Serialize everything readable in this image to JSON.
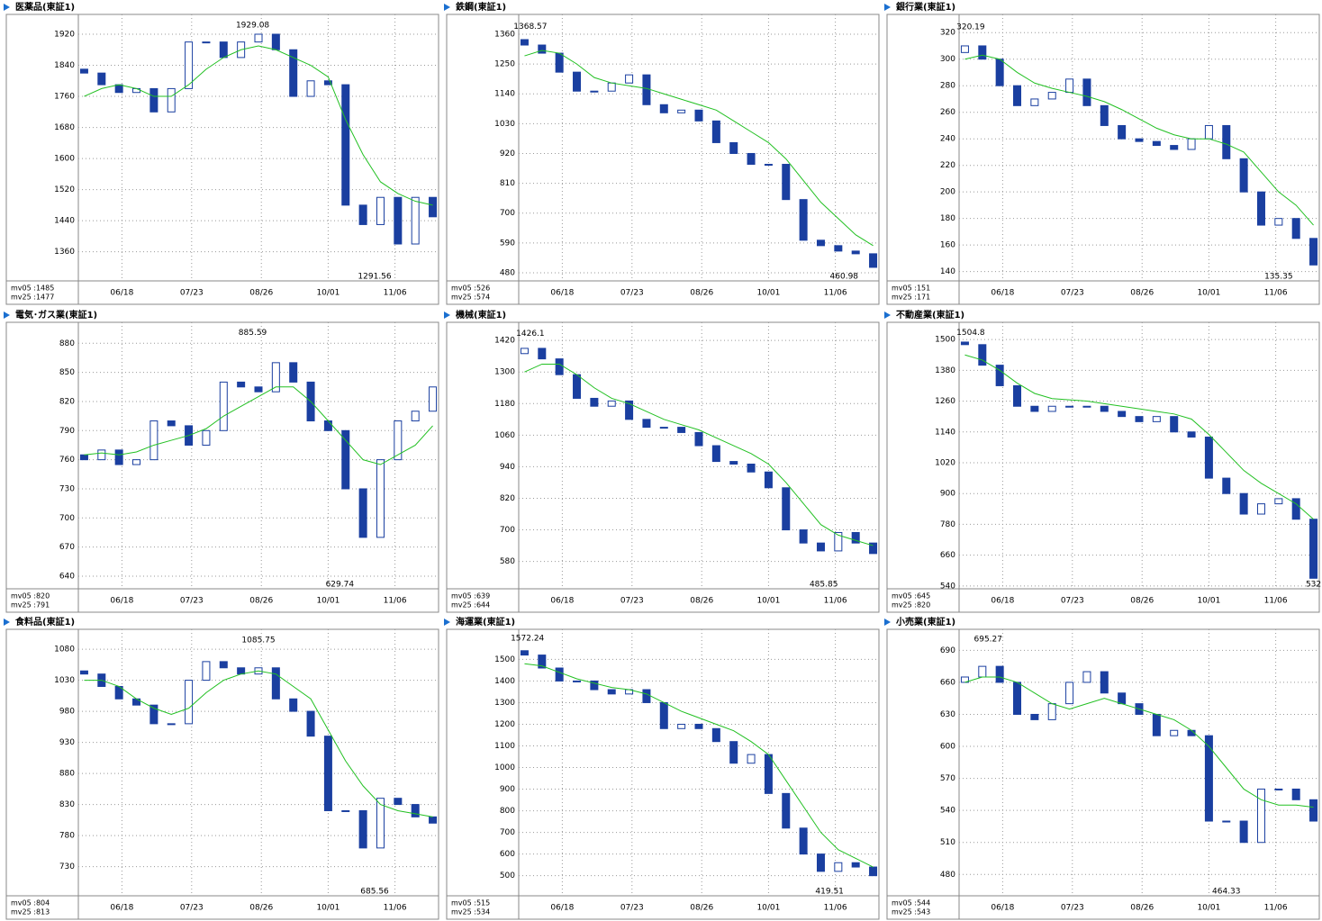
{
  "chart_data": [
    {
      "type": "candlestick",
      "title": "医薬品(東証1)",
      "x": [
        0,
        6,
        12,
        18,
        24,
        30,
        36,
        42,
        48,
        54,
        60,
        66,
        72,
        78,
        84,
        90,
        96,
        102,
        108,
        114,
        120
      ],
      "open": [
        1830,
        1820,
        1790,
        1770,
        1780,
        1720,
        1780,
        1900,
        1900,
        1860,
        1900,
        1920,
        1880,
        1760,
        1800,
        1790,
        1480,
        1430,
        1500,
        1380,
        1500
      ],
      "close": [
        1820,
        1790,
        1770,
        1780,
        1720,
        1780,
        1900,
        1900,
        1860,
        1900,
        1920,
        1880,
        1760,
        1800,
        1790,
        1480,
        1430,
        1500,
        1380,
        1500,
        1450
      ],
      "ma25": [
        1760,
        1780,
        1790,
        1780,
        1760,
        1760,
        1790,
        1830,
        1860,
        1880,
        1890,
        1880,
        1860,
        1840,
        1810,
        1700,
        1610,
        1540,
        1510,
        1490,
        1480
      ],
      "candle_color": "#1a3fa0",
      "ma25_color": "#22c022",
      "grid": true,
      "xlim": [
        -2,
        122
      ],
      "xticks": [
        {
          "value": 13,
          "label": "06/18"
        },
        {
          "value": 37,
          "label": "07/23"
        },
        {
          "value": 61,
          "label": "08/26"
        },
        {
          "value": 84,
          "label": "10/01"
        },
        {
          "value": 107,
          "label": "11/06"
        }
      ],
      "ylim": [
        1285,
        1971
      ],
      "yticks": [
        1920,
        1840,
        1760,
        1680,
        1600,
        1520,
        1440,
        1360
      ],
      "peak": {
        "x": 58,
        "value": 1929.08
      },
      "trough": {
        "x": 100,
        "value": 1291.56
      },
      "mv_texts": [
        "mv05 :1485",
        "mv25 :1477"
      ]
    },
    {
      "type": "candlestick",
      "title": "鉄鋼(東証1)",
      "x": [
        0,
        6,
        12,
        18,
        24,
        30,
        36,
        42,
        48,
        54,
        60,
        66,
        72,
        78,
        84,
        90,
        96,
        102,
        108,
        114,
        120
      ],
      "open": [
        1340,
        1320,
        1290,
        1220,
        1150,
        1150,
        1180,
        1210,
        1100,
        1070,
        1080,
        1040,
        960,
        920,
        880,
        880,
        750,
        600,
        580,
        560,
        550
      ],
      "close": [
        1320,
        1290,
        1220,
        1150,
        1150,
        1180,
        1210,
        1100,
        1070,
        1080,
        1040,
        960,
        920,
        880,
        880,
        750,
        600,
        580,
        560,
        550,
        500
      ],
      "ma25": [
        1280,
        1300,
        1290,
        1250,
        1200,
        1180,
        1170,
        1160,
        1140,
        1120,
        1100,
        1080,
        1040,
        1000,
        960,
        900,
        820,
        740,
        680,
        620,
        580
      ],
      "candle_color": "#1a3fa0",
      "ma25_color": "#22c022",
      "grid": true,
      "xlim": [
        -2,
        122
      ],
      "xticks": [
        {
          "value": 13,
          "label": "06/18"
        },
        {
          "value": 37,
          "label": "07/23"
        },
        {
          "value": 61,
          "label": "08/26"
        },
        {
          "value": 84,
          "label": "10/01"
        },
        {
          "value": 107,
          "label": "11/06"
        }
      ],
      "ylim": [
        450,
        1433
      ],
      "yticks": [
        1360,
        1250,
        1140,
        1030,
        920,
        810,
        700,
        590,
        480
      ],
      "peak": {
        "x": 2,
        "value": 1368.57
      },
      "trough": {
        "x": 110,
        "value": 460.98
      },
      "mv_texts": [
        "mv05 :526",
        "mv25 :574"
      ]
    },
    {
      "type": "candlestick",
      "title": "銀行業(東証1)",
      "x": [
        0,
        6,
        12,
        18,
        24,
        30,
        36,
        42,
        48,
        54,
        60,
        66,
        72,
        78,
        84,
        90,
        96,
        102,
        108,
        114,
        120
      ],
      "open": [
        305,
        310,
        300,
        280,
        265,
        270,
        275,
        285,
        265,
        250,
        240,
        238,
        235,
        232,
        240,
        250,
        225,
        200,
        175,
        180,
        165
      ],
      "close": [
        310,
        300,
        280,
        265,
        270,
        275,
        285,
        265,
        250,
        240,
        238,
        235,
        232,
        240,
        250,
        225,
        200,
        175,
        180,
        165,
        145
      ],
      "ma25": [
        300,
        303,
        300,
        290,
        282,
        278,
        275,
        272,
        268,
        262,
        255,
        248,
        243,
        240,
        240,
        236,
        230,
        215,
        200,
        190,
        175
      ],
      "candle_color": "#1a3fa0",
      "ma25_color": "#22c022",
      "grid": true,
      "xlim": [
        -2,
        122
      ],
      "xticks": [
        {
          "value": 13,
          "label": "06/18"
        },
        {
          "value": 37,
          "label": "07/23"
        },
        {
          "value": 61,
          "label": "08/26"
        },
        {
          "value": 84,
          "label": "10/01"
        },
        {
          "value": 107,
          "label": "11/06"
        }
      ],
      "ylim": [
        133,
        333.7
      ],
      "yticks": [
        320,
        300,
        280,
        260,
        240,
        220,
        200,
        180,
        160,
        140
      ],
      "peak": {
        "x": 2,
        "value": 320.19
      },
      "trough": {
        "x": 108,
        "value": 135.35
      },
      "mv_texts": [
        "mv05 :151",
        "mv25 :171"
      ]
    },
    {
      "type": "candlestick",
      "title": "電気･ガス業(東証1)",
      "x": [
        0,
        6,
        12,
        18,
        24,
        30,
        36,
        42,
        48,
        54,
        60,
        66,
        72,
        78,
        84,
        90,
        96,
        102,
        108,
        114,
        120
      ],
      "open": [
        765,
        760,
        770,
        755,
        760,
        800,
        795,
        775,
        790,
        840,
        835,
        830,
        860,
        840,
        800,
        790,
        730,
        680,
        760,
        800,
        810
      ],
      "close": [
        760,
        770,
        755,
        760,
        800,
        795,
        775,
        790,
        840,
        835,
        830,
        860,
        840,
        800,
        790,
        730,
        680,
        760,
        800,
        810,
        835
      ],
      "ma25": [
        765,
        767,
        765,
        768,
        775,
        780,
        785,
        792,
        805,
        815,
        825,
        835,
        835,
        820,
        800,
        780,
        760,
        755,
        765,
        775,
        795
      ],
      "candle_color": "#1a3fa0",
      "ma25_color": "#22c022",
      "grid": true,
      "xlim": [
        -2,
        122
      ],
      "xticks": [
        {
          "value": 13,
          "label": "06/18"
        },
        {
          "value": 37,
          "label": "07/23"
        },
        {
          "value": 61,
          "label": "08/26"
        },
        {
          "value": 84,
          "label": "10/01"
        },
        {
          "value": 107,
          "label": "11/06"
        }
      ],
      "ylim": [
        627,
        901.6
      ],
      "yticks": [
        880,
        850,
        820,
        790,
        760,
        730,
        700,
        670,
        640
      ],
      "peak": {
        "x": 58,
        "value": 885.59
      },
      "trough": {
        "x": 88,
        "value": 629.74
      },
      "mv_texts": [
        "mv05 :820",
        "mv25 :791"
      ]
    },
    {
      "type": "candlestick",
      "title": "機械(東証1)",
      "x": [
        0,
        6,
        12,
        18,
        24,
        30,
        36,
        42,
        48,
        54,
        60,
        66,
        72,
        78,
        84,
        90,
        96,
        102,
        108,
        114,
        120
      ],
      "open": [
        1370,
        1390,
        1350,
        1290,
        1200,
        1170,
        1190,
        1120,
        1090,
        1090,
        1070,
        1020,
        960,
        950,
        920,
        860,
        700,
        650,
        620,
        690,
        650
      ],
      "close": [
        1390,
        1350,
        1290,
        1200,
        1170,
        1190,
        1120,
        1090,
        1090,
        1070,
        1020,
        960,
        950,
        920,
        860,
        700,
        650,
        620,
        690,
        650,
        610
      ],
      "ma25": [
        1300,
        1330,
        1330,
        1290,
        1240,
        1200,
        1180,
        1150,
        1120,
        1100,
        1080,
        1050,
        1020,
        990,
        950,
        880,
        800,
        720,
        680,
        660,
        640
      ],
      "candle_color": "#1a3fa0",
      "ma25_color": "#22c022",
      "grid": true,
      "xlim": [
        -2,
        122
      ],
      "xticks": [
        {
          "value": 13,
          "label": "06/18"
        },
        {
          "value": 37,
          "label": "07/23"
        },
        {
          "value": 61,
          "label": "08/26"
        },
        {
          "value": 84,
          "label": "10/01"
        },
        {
          "value": 107,
          "label": "11/06"
        }
      ],
      "ylim": [
        476,
        1489
      ],
      "yticks": [
        1420,
        1300,
        1180,
        1060,
        940,
        820,
        700,
        580
      ],
      "peak": {
        "x": 2,
        "value": 1426.1
      },
      "trough": {
        "x": 103,
        "value": 485.85
      },
      "mv_texts": [
        "mv05 :639",
        "mv25 :644"
      ]
    },
    {
      "type": "candlestick",
      "title": "不動産業(東証1)",
      "x": [
        0,
        6,
        12,
        18,
        24,
        30,
        36,
        42,
        48,
        54,
        60,
        66,
        72,
        78,
        84,
        90,
        96,
        102,
        108,
        114,
        120
      ],
      "open": [
        1490,
        1480,
        1400,
        1320,
        1240,
        1220,
        1240,
        1240,
        1240,
        1220,
        1200,
        1180,
        1200,
        1140,
        1120,
        960,
        900,
        820,
        860,
        880,
        800
      ],
      "close": [
        1480,
        1400,
        1320,
        1240,
        1220,
        1240,
        1240,
        1240,
        1220,
        1200,
        1180,
        1200,
        1140,
        1120,
        960,
        900,
        820,
        860,
        880,
        800,
        570
      ],
      "ma25": [
        1440,
        1420,
        1380,
        1330,
        1290,
        1270,
        1265,
        1260,
        1250,
        1240,
        1230,
        1220,
        1210,
        1190,
        1130,
        1060,
        990,
        940,
        900,
        860,
        800
      ],
      "candle_color": "#1a3fa0",
      "ma25_color": "#22c022",
      "grid": true,
      "xlim": [
        -2,
        122
      ],
      "xticks": [
        {
          "value": 13,
          "label": "06/18"
        },
        {
          "value": 37,
          "label": "07/23"
        },
        {
          "value": 61,
          "label": "08/26"
        },
        {
          "value": 84,
          "label": "10/01"
        },
        {
          "value": 107,
          "label": "11/06"
        }
      ],
      "ylim": [
        529,
        1567
      ],
      "yticks": [
        1500,
        1380,
        1260,
        1140,
        1020,
        900,
        780,
        660,
        540
      ],
      "peak": {
        "x": 2,
        "value": 1504.8
      },
      "trough": {
        "x": 120,
        "value": 532
      },
      "mv_texts": [
        "mv05 :645",
        "mv25 :820"
      ]
    },
    {
      "type": "candlestick",
      "title": "食料品(東証1)",
      "x": [
        0,
        6,
        12,
        18,
        24,
        30,
        36,
        42,
        48,
        54,
        60,
        66,
        72,
        78,
        84,
        90,
        96,
        102,
        108,
        114,
        120
      ],
      "open": [
        1045,
        1040,
        1020,
        1000,
        990,
        960,
        960,
        1030,
        1060,
        1050,
        1040,
        1050,
        1000,
        980,
        940,
        820,
        820,
        760,
        840,
        830,
        810
      ],
      "close": [
        1040,
        1020,
        1000,
        990,
        960,
        960,
        1030,
        1060,
        1050,
        1040,
        1050,
        1000,
        980,
        940,
        820,
        820,
        760,
        840,
        830,
        810,
        800
      ],
      "ma25": [
        1030,
        1030,
        1020,
        1000,
        985,
        975,
        985,
        1010,
        1030,
        1040,
        1045,
        1040,
        1020,
        1000,
        950,
        900,
        860,
        830,
        820,
        815,
        810
      ],
      "candle_color": "#1a3fa0",
      "ma25_color": "#22c022",
      "grid": true,
      "xlim": [
        -2,
        122
      ],
      "xticks": [
        {
          "value": 13,
          "label": "06/18"
        },
        {
          "value": 37,
          "label": "07/23"
        },
        {
          "value": 61,
          "label": "08/26"
        },
        {
          "value": 84,
          "label": "10/01"
        },
        {
          "value": 107,
          "label": "11/06"
        }
      ],
      "ylim": [
        683,
        1112
      ],
      "yticks": [
        1080,
        1030,
        980,
        930,
        880,
        830,
        780,
        730
      ],
      "peak": {
        "x": 60,
        "value": 1085.75
      },
      "trough": {
        "x": 100,
        "value": 685.56
      },
      "mv_texts": [
        "mv05 :804",
        "mv25 :813"
      ]
    },
    {
      "type": "candlestick",
      "title": "海運業(東証1)",
      "x": [
        0,
        6,
        12,
        18,
        24,
        30,
        36,
        42,
        48,
        54,
        60,
        66,
        72,
        78,
        84,
        90,
        96,
        102,
        108,
        114,
        120
      ],
      "open": [
        1540,
        1520,
        1460,
        1400,
        1400,
        1360,
        1340,
        1360,
        1300,
        1180,
        1200,
        1180,
        1120,
        1020,
        1060,
        880,
        720,
        600,
        520,
        560,
        540
      ],
      "close": [
        1520,
        1460,
        1400,
        1400,
        1360,
        1340,
        1360,
        1300,
        1180,
        1200,
        1180,
        1120,
        1020,
        1060,
        880,
        720,
        600,
        520,
        560,
        540,
        500
      ],
      "ma25": [
        1480,
        1470,
        1440,
        1410,
        1390,
        1370,
        1360,
        1340,
        1300,
        1260,
        1230,
        1200,
        1170,
        1120,
        1060,
        940,
        820,
        700,
        620,
        580,
        540
      ],
      "candle_color": "#1a3fa0",
      "ma25_color": "#22c022",
      "grid": true,
      "xlim": [
        -2,
        122
      ],
      "xticks": [
        {
          "value": 13,
          "label": "06/18"
        },
        {
          "value": 37,
          "label": "07/23"
        },
        {
          "value": 61,
          "label": "08/26"
        },
        {
          "value": 84,
          "label": "10/01"
        },
        {
          "value": 107,
          "label": "11/06"
        }
      ],
      "ylim": [
        407,
        1639
      ],
      "yticks": [
        1500,
        1400,
        1300,
        1200,
        1100,
        1000,
        900,
        800,
        700,
        600,
        500
      ],
      "peak": {
        "x": 1,
        "value": 1572.24
      },
      "trough": {
        "x": 105,
        "value": 419.51
      },
      "mv_texts": [
        "mv05 :515",
        "mv25 :534"
      ]
    },
    {
      "type": "candlestick",
      "title": "小売業(東証1)",
      "x": [
        0,
        6,
        12,
        18,
        24,
        30,
        36,
        42,
        48,
        54,
        60,
        66,
        72,
        78,
        84,
        90,
        96,
        102,
        108,
        114,
        120
      ],
      "open": [
        660,
        665,
        675,
        660,
        630,
        625,
        640,
        660,
        670,
        650,
        640,
        630,
        610,
        615,
        610,
        530,
        530,
        510,
        560,
        560,
        550
      ],
      "close": [
        665,
        675,
        660,
        630,
        625,
        640,
        660,
        670,
        650,
        640,
        630,
        610,
        615,
        610,
        530,
        530,
        510,
        560,
        560,
        550,
        530
      ],
      "ma25": [
        660,
        665,
        665,
        660,
        650,
        640,
        635,
        640,
        645,
        640,
        635,
        630,
        625,
        615,
        600,
        580,
        560,
        550,
        545,
        545,
        543
      ],
      "candle_color": "#1a3fa0",
      "ma25_color": "#22c022",
      "grid": true,
      "xlim": [
        -2,
        122
      ],
      "xticks": [
        {
          "value": 13,
          "label": "06/18"
        },
        {
          "value": 37,
          "label": "07/23"
        },
        {
          "value": 61,
          "label": "08/26"
        },
        {
          "value": 84,
          "label": "10/01"
        },
        {
          "value": 107,
          "label": "11/06"
        }
      ],
      "ylim": [
        460,
        709.7
      ],
      "yticks": [
        690,
        660,
        630,
        600,
        570,
        540,
        510,
        480
      ],
      "peak": {
        "x": 8,
        "value": 695.27
      },
      "trough": {
        "x": 90,
        "value": 464.33
      },
      "mv_texts": [
        "mv05 :544",
        "mv25 :543"
      ]
    }
  ]
}
